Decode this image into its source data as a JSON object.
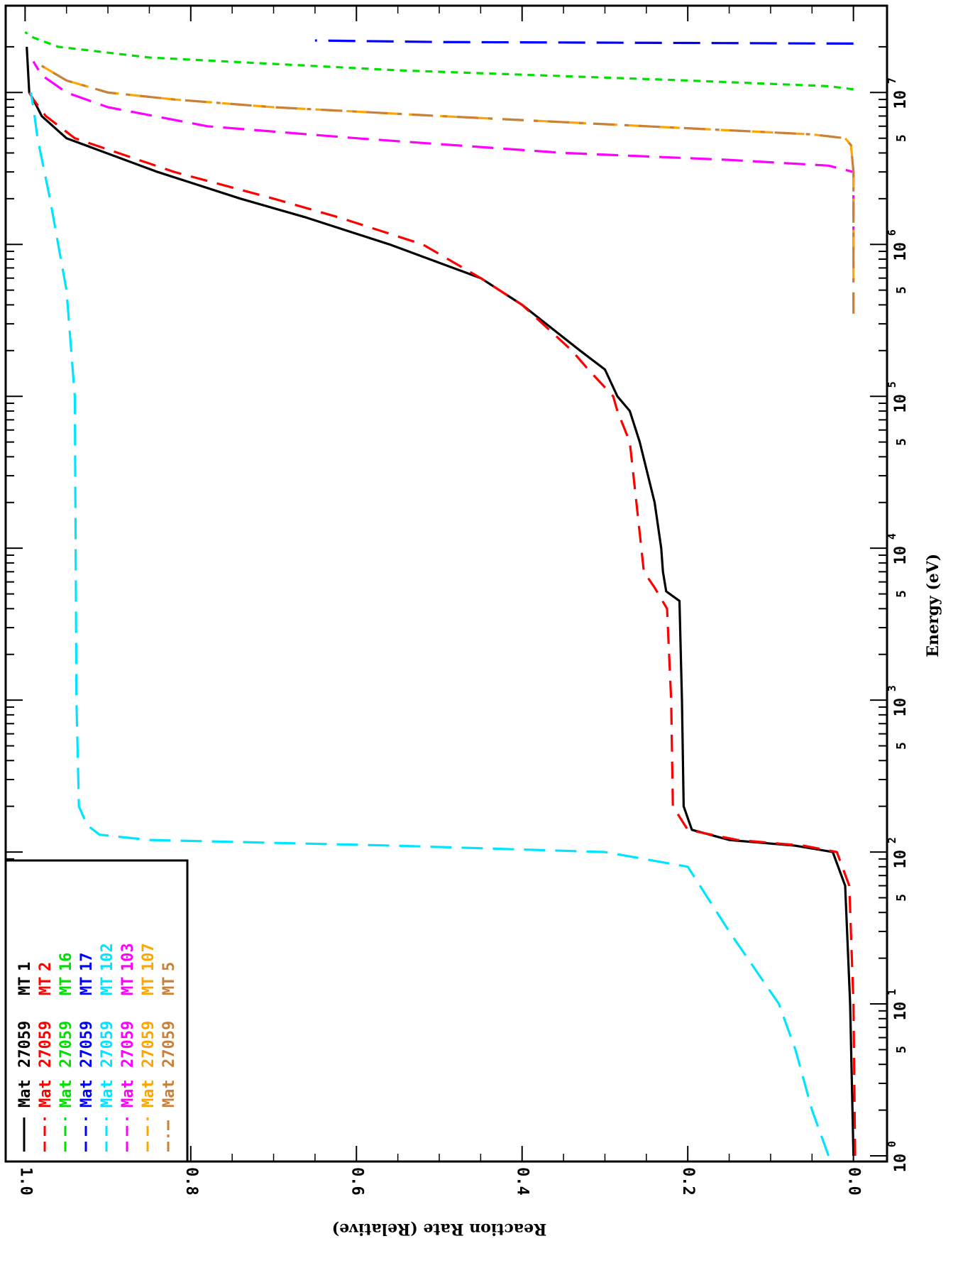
{
  "chart_data": {
    "type": "line",
    "xlabel": "Energy (eV)",
    "ylabel": "Reaction Rate (Relative)",
    "x_scale": "log",
    "xlim": [
      1,
      27000000
    ],
    "ylim": [
      -0.02,
      1.02
    ],
    "x_major_ticks": [
      {
        "value": 1,
        "base": "10",
        "exp": "0"
      },
      {
        "value": 10,
        "base": "10",
        "exp": "1"
      },
      {
        "value": 100,
        "base": "10",
        "exp": "2"
      },
      {
        "value": 1000,
        "base": "10",
        "exp": "3"
      },
      {
        "value": 10000,
        "base": "10",
        "exp": "4"
      },
      {
        "value": 100000,
        "base": "10",
        "exp": "5"
      },
      {
        "value": 1000000,
        "base": "10",
        "exp": "6"
      },
      {
        "value": 10000000,
        "base": "10",
        "exp": "7"
      }
    ],
    "x_minor_labels": [
      {
        "value": 5,
        "label": "5"
      },
      {
        "value": 50,
        "label": "5"
      },
      {
        "value": 500,
        "label": "5"
      },
      {
        "value": 5000,
        "label": "5"
      },
      {
        "value": 50000,
        "label": "5"
      },
      {
        "value": 500000,
        "label": "5"
      },
      {
        "value": 5000000,
        "label": "5"
      }
    ],
    "y_ticks": [
      {
        "value": 0.0,
        "label": "0.0"
      },
      {
        "value": 0.2,
        "label": "0.2"
      },
      {
        "value": 0.4,
        "label": "0.4"
      },
      {
        "value": 0.6,
        "label": "0.6"
      },
      {
        "value": 0.8,
        "label": "0.8"
      },
      {
        "value": 1.0,
        "label": "1.0"
      }
    ],
    "grid": false,
    "legend_position": "top-left",
    "orientation": "rotated 90 degrees",
    "series": [
      {
        "name": "Mat 27059 MT 1",
        "mat": "Mat",
        "num": "27059",
        "mt": "MT",
        "mtv": "1",
        "color": "#000000",
        "dash": "solid",
        "x": [
          1,
          10,
          60,
          100,
          110,
          120,
          140,
          200,
          1000,
          4500,
          5200,
          7000,
          10000,
          20000,
          50000,
          80000,
          100000,
          150000,
          200000,
          400000,
          600000,
          1000000,
          1500000,
          2000000,
          3000000,
          5000000,
          7000000,
          9000000,
          10000000,
          20000000
        ],
        "y": [
          0.0,
          0.004,
          0.01,
          0.025,
          0.07,
          0.15,
          0.195,
          0.205,
          0.207,
          0.21,
          0.226,
          0.23,
          0.232,
          0.24,
          0.258,
          0.27,
          0.285,
          0.3,
          0.33,
          0.4,
          0.45,
          0.56,
          0.66,
          0.74,
          0.84,
          0.95,
          0.98,
          0.99,
          0.995,
          0.998
        ]
      },
      {
        "name": "Mat 27059 MT 2",
        "mat": "Mat",
        "num": "27059",
        "mt": "MT",
        "mtv": "2",
        "color": "#ff0000",
        "dash": "24,14",
        "x": [
          1,
          10,
          60,
          100,
          110,
          120,
          140,
          200,
          1000,
          4000,
          5500,
          7000,
          10000,
          20000,
          50000,
          80000,
          100000,
          150000,
          200000,
          400000,
          600000,
          1000000,
          1500000,
          2000000,
          3000000,
          5000000,
          7000000,
          9000000,
          10000000
        ],
        "y": [
          -0.002,
          0.0,
          0.005,
          0.02,
          0.06,
          0.14,
          0.2,
          0.218,
          0.22,
          0.225,
          0.24,
          0.253,
          0.256,
          0.262,
          0.27,
          0.285,
          0.29,
          0.32,
          0.34,
          0.4,
          0.45,
          0.52,
          0.62,
          0.7,
          0.82,
          0.94,
          0.975,
          0.99,
          0.995
        ]
      },
      {
        "name": "Mat 27059 MT 16",
        "mat": "Mat",
        "num": "27059",
        "mt": "MT",
        "mtv": "16",
        "color": "#00e000",
        "dash": "10,8",
        "x": [
          10500000,
          11000000,
          12000000,
          14000000,
          17000000,
          20000000,
          23000000,
          25000000
        ],
        "y": [
          0.0,
          0.03,
          0.2,
          0.55,
          0.85,
          0.96,
          0.99,
          1.0
        ]
      },
      {
        "name": "Mat 27059 MT 17",
        "mat": "Mat",
        "num": "27059",
        "mt": "MT",
        "mtv": "17",
        "color": "#0000ff",
        "dash": "38,16",
        "x": [
          21000000,
          21200000,
          21500000,
          22000000
        ],
        "y": [
          0.0,
          0.2,
          0.5,
          0.65
        ]
      },
      {
        "name": "Mat 27059 MT 102",
        "mat": "Mat",
        "num": "27059",
        "mt": "MT",
        "mtv": "102",
        "color": "#00e5ff",
        "dash": "30,14",
        "x": [
          1,
          2,
          5,
          10,
          30,
          80,
          100,
          110,
          120,
          130,
          150,
          200,
          1000,
          10000,
          100000,
          500000,
          1000000,
          2000000,
          5000000,
          8000000,
          10000000
        ],
        "y": [
          0.03,
          0.05,
          0.07,
          0.09,
          0.15,
          0.2,
          0.3,
          0.55,
          0.85,
          0.91,
          0.925,
          0.935,
          0.938,
          0.939,
          0.94,
          0.95,
          0.96,
          0.97,
          0.985,
          0.99,
          0.993
        ]
      },
      {
        "name": "Mat 27059 MT 103",
        "mat": "Mat",
        "num": "27059",
        "mt": "MT",
        "mtv": "103",
        "color": "#ff00ff",
        "dash": "30,14",
        "x": [
          950000,
          1050000,
          3000000,
          3300000,
          3600000,
          4000000,
          5000000,
          6000000,
          8000000,
          10000000,
          13000000,
          16000000
        ],
        "y": [
          0.0,
          0.0,
          0.0,
          0.03,
          0.15,
          0.35,
          0.6,
          0.78,
          0.9,
          0.95,
          0.98,
          0.99
        ]
      },
      {
        "name": "Mat 27059 MT 107",
        "mat": "Mat",
        "num": "27059",
        "mt": "MT",
        "mtv": "107",
        "color": "#ffa500",
        "dash": "30,14",
        "x": [
          350000,
          3000000,
          4500000,
          5000000,
          5300000,
          6000000,
          7000000,
          8000000,
          9000000,
          10000000,
          12000000,
          15000000
        ],
        "y": [
          0.0,
          0.0,
          0.003,
          0.01,
          0.05,
          0.25,
          0.5,
          0.7,
          0.82,
          0.9,
          0.95,
          0.98
        ]
      },
      {
        "name": "Mat 27059 MT 5",
        "mat": "Mat",
        "num": "27059",
        "mt": "MT",
        "mtv": "5",
        "color": "#c8813a",
        "dash": "30,14,6,14",
        "x": [
          350000,
          3000000,
          4500000,
          5000000,
          5300000,
          6000000,
          7000000,
          8000000,
          9000000,
          10000000,
          12000000,
          15000000
        ],
        "y": [
          0.0,
          0.0,
          0.003,
          0.01,
          0.05,
          0.25,
          0.5,
          0.7,
          0.82,
          0.9,
          0.95,
          0.98
        ]
      }
    ]
  }
}
